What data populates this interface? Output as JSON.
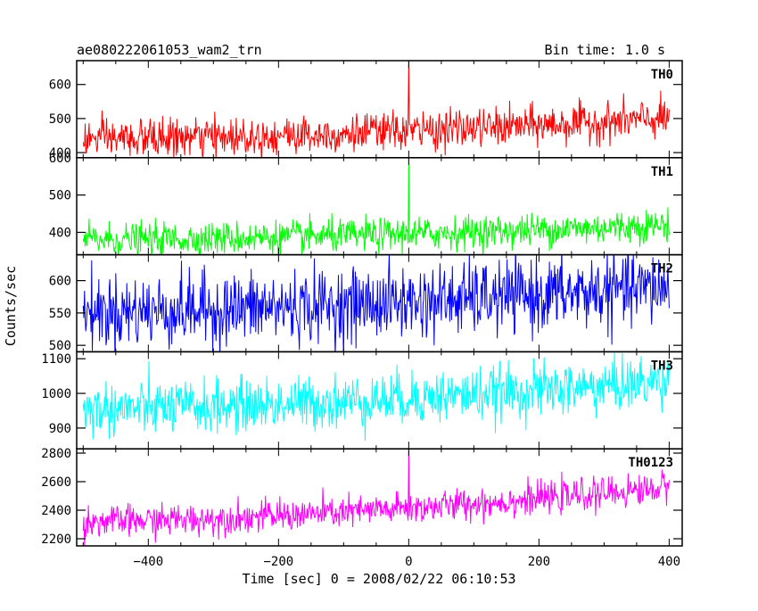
{
  "header": {
    "title": "ae080222061053_wam2_trn",
    "bin_time": "Bin time: 1.0 s"
  },
  "chart_data": {
    "type": "line",
    "title": "ae080222061053_wam2_trn",
    "xlabel": "Time [sec] 0 = 2008/02/22 06:10:53",
    "ylabel": "Counts/sec",
    "xlim": [
      -510,
      420
    ],
    "x_ticks": [
      -400,
      -200,
      0,
      200,
      400
    ],
    "x_tick_labels": [
      "−400",
      "−200",
      "0",
      "200",
      "400"
    ],
    "x_range_data": [
      -500,
      400
    ],
    "bin_time_s": 1.0,
    "series": [
      {
        "name": "TH0",
        "color": "#ff0000",
        "ylim": [
          385,
          670
        ],
        "y_ticks": [
          400,
          500,
          600
        ],
        "base_start": 440,
        "base_end": 500,
        "noise": 28,
        "spike_at": 0,
        "spike_peak": 670
      },
      {
        "name": "TH1",
        "color": "#00ff00",
        "ylim": [
          340,
          600
        ],
        "y_ticks": [
          400,
          500,
          600
        ],
        "base_start": 380,
        "base_end": 420,
        "noise": 22,
        "spike_at": 0,
        "spike_peak": 600
      },
      {
        "name": "TH2",
        "color": "#0000ff",
        "ylim": [
          490,
          640
        ],
        "y_ticks": [
          500,
          550,
          600
        ],
        "base_start": 552,
        "base_end": 590,
        "noise": 28,
        "spike_at": null,
        "spike_peak": null
      },
      {
        "name": "TH3",
        "color": "#00ffff",
        "ylim": [
          840,
          1120
        ],
        "y_ticks": [
          900,
          1000,
          1100
        ],
        "base_start": 955,
        "base_end": 1035,
        "noise": 38,
        "spike_at": null,
        "spike_peak": null
      },
      {
        "name": "TH0123",
        "color": "#ff00ff",
        "ylim": [
          2150,
          2830
        ],
        "y_ticks": [
          2200,
          2400,
          2600,
          2800
        ],
        "base_start": 2320,
        "base_end": 2560,
        "noise": 55,
        "spike_at": 0,
        "spike_peak": 2830
      }
    ]
  }
}
